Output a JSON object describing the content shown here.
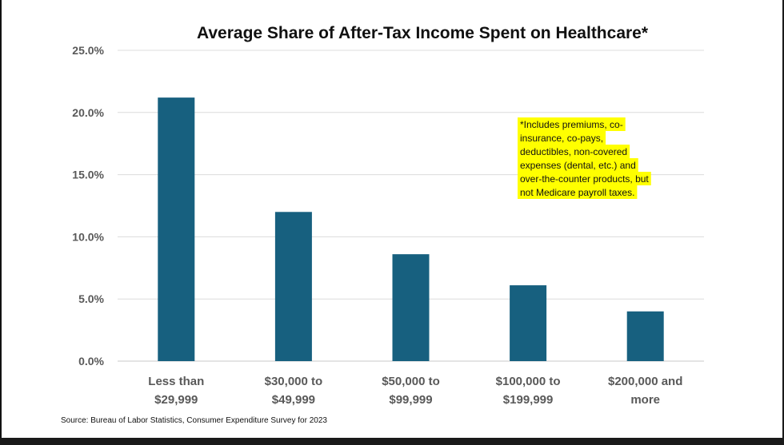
{
  "chart_data": {
    "type": "bar",
    "title": "Average Share of After-Tax Income Spent on Healthcare*",
    "categories": [
      [
        "Less than",
        "$29,999"
      ],
      [
        "$30,000 to",
        "$49,999"
      ],
      [
        "$50,000 to",
        "$99,999"
      ],
      [
        "$100,000 to",
        "$199,999"
      ],
      [
        "$200,000 and",
        "more"
      ]
    ],
    "values": [
      21.2,
      12.0,
      8.6,
      6.1,
      4.0
    ],
    "ylim": [
      0,
      25
    ],
    "yticks": [
      "0.0%",
      "5.0%",
      "10.0%",
      "15.0%",
      "20.0%",
      "25.0%"
    ],
    "grid": true,
    "bar_color": "#17607f",
    "annotation": {
      "lines": [
        "*Includes premiums, co-",
        "insurance, co-pays,",
        "deductibles, non-covered",
        "expenses (dental, etc.) and",
        "over-the-counter products, but",
        "not Medicare payroll taxes."
      ],
      "highlight_color": "#ffff00"
    },
    "source": "Source: Bureau of Labor Statistics, Consumer Expenditure Survey for 2023"
  }
}
